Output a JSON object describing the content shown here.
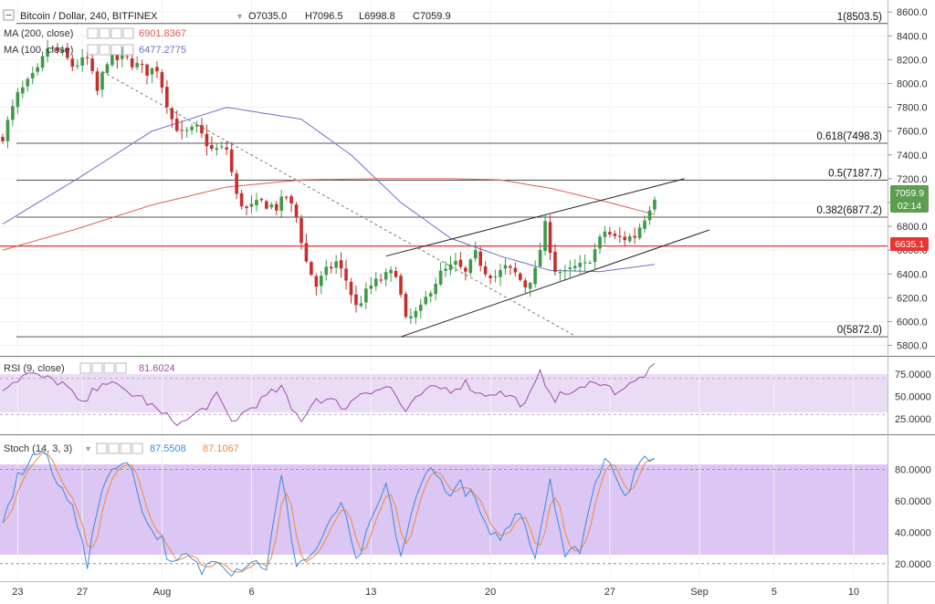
{
  "header": {
    "symbol": "Bitcoin / Dollar, 240, BITFINEX",
    "open": "O7035.0",
    "high": "H7096.5",
    "low": "L6998.8",
    "close": "C7059.9"
  },
  "indicators": {
    "ma200": {
      "label": "MA (200, close)",
      "value": "6901.8367",
      "color": "#e05a4e"
    },
    "ma100": {
      "label": "MA (100, close)",
      "value": "6477.2775",
      "color": "#6a6fc8"
    },
    "rsi": {
      "label": "RSI (9, close)",
      "value": "81.6024",
      "color": "#9c4fa8"
    },
    "stoch": {
      "label": "Stoch (14, 3, 3)",
      "k_value": "87.5508",
      "d_value": "87.1067",
      "k_color": "#3b8ad9",
      "d_color": "#f08a3c"
    }
  },
  "colors": {
    "up": "#3c9a48",
    "down": "#c62f2f",
    "fib": "#555555",
    "support": "#e83434",
    "price_label_bg": "#5c9d4f",
    "support_label_bg": "#e83434",
    "rsi_band": "#ebdcf6",
    "stoch_band": "#dcc6f4"
  },
  "chart_data": [
    {
      "type": "candlestick",
      "title": "Bitcoin / Dollar, 240, BITFINEX",
      "y_axis": {
        "ticks": [
          "8600.0",
          "8400.0",
          "8200.0",
          "8000.0",
          "7800.0",
          "7600.0",
          "7400.0",
          "7200.0",
          "7000.0",
          "6800.0",
          "6600.0",
          "6400.0",
          "6200.0",
          "6000.0",
          "5800.0"
        ],
        "range": [
          5720,
          8640
        ]
      },
      "x_axis": {
        "ticks": [
          "23",
          "27",
          "Aug",
          "6",
          "13",
          "20",
          "27",
          "Sep",
          "5",
          "10"
        ]
      },
      "last_price": {
        "value": "7059.9",
        "countdown": "02:14"
      },
      "support_level": {
        "value": 6635.1,
        "label": "6635.1"
      },
      "fib_levels": [
        {
          "label": "1(8503.5)",
          "value": 8503.5
        },
        {
          "label": "0.618(7498.3)",
          "value": 7498.3
        },
        {
          "label": "0.5(7187.7)",
          "value": 7187.7
        },
        {
          "label": "0.382(6877.2)",
          "value": 6877.2
        },
        {
          "label": "0(5872.0)",
          "value": 5872.0
        }
      ],
      "close_path": [
        {
          "x": 0,
          "v": 7560
        },
        {
          "x": 3,
          "v": 7900
        },
        {
          "x": 7,
          "v": 8100
        },
        {
          "x": 9,
          "v": 8300
        },
        {
          "x": 12,
          "v": 8250
        },
        {
          "x": 14,
          "v": 8150
        },
        {
          "x": 17,
          "v": 8200
        },
        {
          "x": 19,
          "v": 7930
        },
        {
          "x": 21,
          "v": 8200
        },
        {
          "x": 25,
          "v": 8200
        },
        {
          "x": 29,
          "v": 8100
        },
        {
          "x": 31,
          "v": 8130
        },
        {
          "x": 34,
          "v": 7700
        },
        {
          "x": 36,
          "v": 7570
        },
        {
          "x": 39,
          "v": 7620
        },
        {
          "x": 42,
          "v": 7440
        },
        {
          "x": 45,
          "v": 7450
        },
        {
          "x": 47,
          "v": 7050
        },
        {
          "x": 49,
          "v": 6940
        },
        {
          "x": 52,
          "v": 7000
        },
        {
          "x": 55,
          "v": 6960
        },
        {
          "x": 57,
          "v": 7050
        },
        {
          "x": 59,
          "v": 6880
        },
        {
          "x": 61,
          "v": 6500
        },
        {
          "x": 63,
          "v": 6300
        },
        {
          "x": 65,
          "v": 6420
        },
        {
          "x": 67,
          "v": 6500
        },
        {
          "x": 69,
          "v": 6350
        },
        {
          "x": 71,
          "v": 6120
        },
        {
          "x": 74,
          "v": 6300
        },
        {
          "x": 77,
          "v": 6380
        },
        {
          "x": 79,
          "v": 6420
        },
        {
          "x": 81,
          "v": 6000
        },
        {
          "x": 84,
          "v": 6100
        },
        {
          "x": 86,
          "v": 6280
        },
        {
          "x": 88,
          "v": 6400
        },
        {
          "x": 91,
          "v": 6480
        },
        {
          "x": 93,
          "v": 6400
        },
        {
          "x": 95,
          "v": 6560
        },
        {
          "x": 97,
          "v": 6430
        },
        {
          "x": 99,
          "v": 6380
        },
        {
          "x": 101,
          "v": 6450
        },
        {
          "x": 103,
          "v": 6400
        },
        {
          "x": 105,
          "v": 6300
        },
        {
          "x": 107,
          "v": 6420
        },
        {
          "x": 109,
          "v": 6800
        },
        {
          "x": 111,
          "v": 6440
        },
        {
          "x": 113,
          "v": 6400
        },
        {
          "x": 115,
          "v": 6450
        },
        {
          "x": 117,
          "v": 6470
        },
        {
          "x": 119,
          "v": 6600
        },
        {
          "x": 121,
          "v": 6760
        },
        {
          "x": 123,
          "v": 6700
        },
        {
          "x": 125,
          "v": 6700
        },
        {
          "x": 127,
          "v": 6720
        },
        {
          "x": 129,
          "v": 6880
        },
        {
          "x": 131,
          "v": 7060
        }
      ],
      "ma100_path": [
        {
          "x": 0,
          "v": 6820
        },
        {
          "x": 15,
          "v": 7200
        },
        {
          "x": 30,
          "v": 7600
        },
        {
          "x": 45,
          "v": 7800
        },
        {
          "x": 60,
          "v": 7700
        },
        {
          "x": 70,
          "v": 7400
        },
        {
          "x": 80,
          "v": 7000
        },
        {
          "x": 90,
          "v": 6700
        },
        {
          "x": 100,
          "v": 6550
        },
        {
          "x": 110,
          "v": 6430
        },
        {
          "x": 120,
          "v": 6420
        },
        {
          "x": 131,
          "v": 6480
        }
      ],
      "ma200_path": [
        {
          "x": 0,
          "v": 6600
        },
        {
          "x": 15,
          "v": 6780
        },
        {
          "x": 30,
          "v": 6980
        },
        {
          "x": 45,
          "v": 7130
        },
        {
          "x": 60,
          "v": 7190
        },
        {
          "x": 75,
          "v": 7200
        },
        {
          "x": 90,
          "v": 7200
        },
        {
          "x": 100,
          "v": 7190
        },
        {
          "x": 110,
          "v": 7120
        },
        {
          "x": 120,
          "v": 7020
        },
        {
          "x": 131,
          "v": 6900
        }
      ],
      "trendlines": [
        {
          "name": "channel-upper",
          "from": {
            "x": 77,
            "v": 6550
          },
          "to": {
            "x": 137,
            "v": 7200
          }
        },
        {
          "name": "channel-lower",
          "from": {
            "x": 80,
            "v": 5872
          },
          "to": {
            "x": 142,
            "v": 6770
          }
        },
        {
          "name": "descending-trend",
          "from": {
            "x": 20,
            "v": 8100
          },
          "to": {
            "x": 115,
            "v": 5880
          }
        }
      ]
    },
    {
      "type": "line",
      "title": "RSI (9, close)",
      "y_axis": {
        "ticks": [
          "75.0000",
          "50.0000",
          "25.0000"
        ],
        "range": [
          10,
          92
        ]
      },
      "band": [
        30,
        70
      ],
      "series": [
        {
          "name": "RSI",
          "value": "81.6024"
        }
      ],
      "anchors": [
        {
          "x": 0,
          "v": 60
        },
        {
          "x": 5,
          "v": 75
        },
        {
          "x": 12,
          "v": 65
        },
        {
          "x": 16,
          "v": 40
        },
        {
          "x": 20,
          "v": 68
        },
        {
          "x": 25,
          "v": 55
        },
        {
          "x": 28,
          "v": 48
        },
        {
          "x": 32,
          "v": 30
        },
        {
          "x": 36,
          "v": 20
        },
        {
          "x": 40,
          "v": 35
        },
        {
          "x": 43,
          "v": 50
        },
        {
          "x": 46,
          "v": 22
        },
        {
          "x": 50,
          "v": 38
        },
        {
          "x": 53,
          "v": 50
        },
        {
          "x": 56,
          "v": 60
        },
        {
          "x": 58,
          "v": 35
        },
        {
          "x": 60,
          "v": 25
        },
        {
          "x": 63,
          "v": 48
        },
        {
          "x": 66,
          "v": 45
        },
        {
          "x": 69,
          "v": 38
        },
        {
          "x": 72,
          "v": 55
        },
        {
          "x": 75,
          "v": 58
        },
        {
          "x": 78,
          "v": 60
        },
        {
          "x": 81,
          "v": 32
        },
        {
          "x": 84,
          "v": 52
        },
        {
          "x": 87,
          "v": 60
        },
        {
          "x": 90,
          "v": 58
        },
        {
          "x": 93,
          "v": 65
        },
        {
          "x": 96,
          "v": 52
        },
        {
          "x": 99,
          "v": 55
        },
        {
          "x": 102,
          "v": 50
        },
        {
          "x": 105,
          "v": 40
        },
        {
          "x": 108,
          "v": 75
        },
        {
          "x": 111,
          "v": 48
        },
        {
          "x": 114,
          "v": 55
        },
        {
          "x": 117,
          "v": 58
        },
        {
          "x": 119,
          "v": 70
        },
        {
          "x": 121,
          "v": 62
        },
        {
          "x": 123,
          "v": 56
        },
        {
          "x": 125,
          "v": 60
        },
        {
          "x": 127,
          "v": 65
        },
        {
          "x": 129,
          "v": 75
        },
        {
          "x": 131,
          "v": 81.6
        }
      ]
    },
    {
      "type": "line",
      "title": "Stoch (14, 3, 3)",
      "y_axis": {
        "ticks": [
          "80.0000",
          "60.0000",
          "40.0000",
          "20.0000"
        ],
        "range": [
          10,
          100
        ]
      },
      "band": [
        20,
        80
      ],
      "series": [
        {
          "name": "%K",
          "value": "87.5508"
        },
        {
          "name": "%D",
          "value": "87.1067"
        }
      ],
      "anchors": [
        {
          "x": 0,
          "v": 45
        },
        {
          "x": 3,
          "v": 75
        },
        {
          "x": 6,
          "v": 88
        },
        {
          "x": 8,
          "v": 92
        },
        {
          "x": 11,
          "v": 70
        },
        {
          "x": 14,
          "v": 60
        },
        {
          "x": 17,
          "v": 18
        },
        {
          "x": 20,
          "v": 70
        },
        {
          "x": 23,
          "v": 85
        },
        {
          "x": 26,
          "v": 80
        },
        {
          "x": 29,
          "v": 45
        },
        {
          "x": 32,
          "v": 35
        },
        {
          "x": 34,
          "v": 18
        },
        {
          "x": 37,
          "v": 25
        },
        {
          "x": 40,
          "v": 15
        },
        {
          "x": 43,
          "v": 25
        },
        {
          "x": 46,
          "v": 15
        },
        {
          "x": 50,
          "v": 22
        },
        {
          "x": 53,
          "v": 18
        },
        {
          "x": 56,
          "v": 75
        },
        {
          "x": 59,
          "v": 20
        },
        {
          "x": 62,
          "v": 25
        },
        {
          "x": 65,
          "v": 40
        },
        {
          "x": 68,
          "v": 60
        },
        {
          "x": 71,
          "v": 20
        },
        {
          "x": 74,
          "v": 45
        },
        {
          "x": 77,
          "v": 70
        },
        {
          "x": 80,
          "v": 25
        },
        {
          "x": 83,
          "v": 60
        },
        {
          "x": 86,
          "v": 85
        },
        {
          "x": 89,
          "v": 65
        },
        {
          "x": 92,
          "v": 70
        },
        {
          "x": 95,
          "v": 60
        },
        {
          "x": 98,
          "v": 35
        },
        {
          "x": 101,
          "v": 40
        },
        {
          "x": 104,
          "v": 55
        },
        {
          "x": 107,
          "v": 25
        },
        {
          "x": 110,
          "v": 75
        },
        {
          "x": 113,
          "v": 25
        },
        {
          "x": 116,
          "v": 30
        },
        {
          "x": 119,
          "v": 70
        },
        {
          "x": 121,
          "v": 90
        },
        {
          "x": 123,
          "v": 80
        },
        {
          "x": 125,
          "v": 62
        },
        {
          "x": 127,
          "v": 75
        },
        {
          "x": 129,
          "v": 88
        },
        {
          "x": 131,
          "v": 87.5
        }
      ]
    }
  ]
}
